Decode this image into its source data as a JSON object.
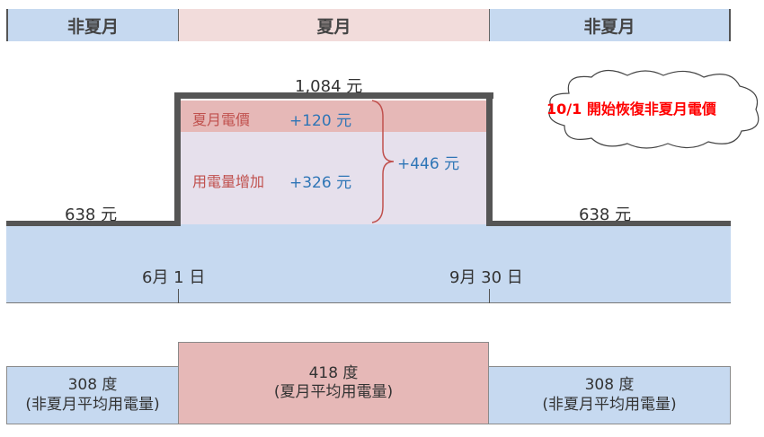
{
  "periods": {
    "left": "非夏月",
    "middle": "夏月",
    "right": "非夏月"
  },
  "bill": {
    "non_summer_left": "638 元",
    "summer_total": "1,084 元",
    "non_summer_right": "638 元",
    "summer_rate_label": "夏月電價",
    "summer_rate_value": "+120 元",
    "usage_increase_label": "用電量增加",
    "usage_increase_value": "+326 元",
    "total_increase": "+446 元"
  },
  "cloud_note": "10/1 開始恢復非夏月電價",
  "timeline": {
    "start": "6月 1 日",
    "end": "9月 30 日"
  },
  "usage": {
    "left_value": "308 度",
    "left_label": "(非夏月平均用電量)",
    "middle_value": "418 度",
    "middle_label": "(夏月平均用電量)",
    "right_value": "308 度",
    "right_label": "(非夏月平均用電量)"
  },
  "colors": {
    "non_summer": "#c6d9f0",
    "summer_header": "#f2dcdb",
    "summer_usage": "#e6b8b7",
    "summer_rate_band": "#e6b8b7",
    "usage_increase_band": "#e6e0ec",
    "line": "#555555",
    "blue_text": "#2e75b6",
    "red_text": "#c0504d",
    "note_red": "#ff0000"
  }
}
